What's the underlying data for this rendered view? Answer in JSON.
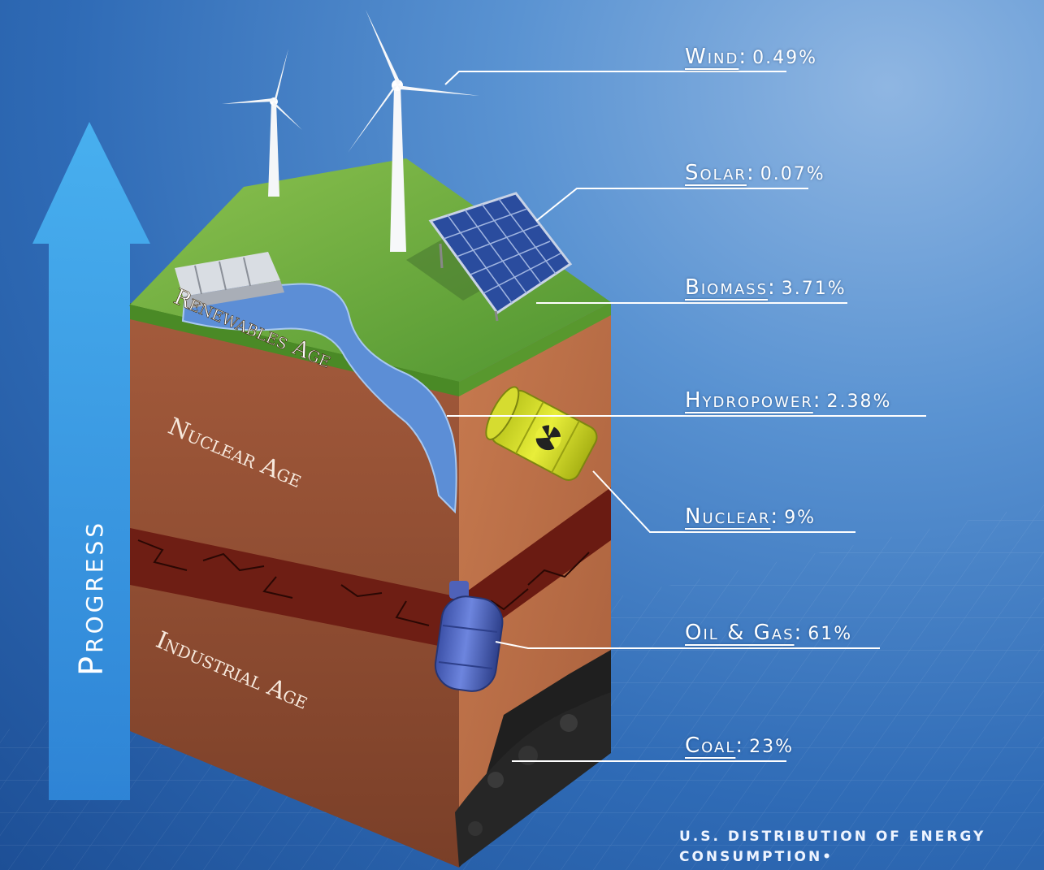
{
  "diagram": {
    "progress_label": "Progress",
    "layers": [
      {
        "label": "Renewables Age"
      },
      {
        "label": "Nuclear Age"
      },
      {
        "label": "Industrial Age"
      }
    ],
    "sources": [
      {
        "name": "Wind",
        "value": "0.49%"
      },
      {
        "name": "Solar",
        "value": "0.07%"
      },
      {
        "name": "Biomass",
        "value": "3.71%"
      },
      {
        "name": "Hydropower",
        "value": "2.38%"
      },
      {
        "name": "Nuclear",
        "value": "9%"
      },
      {
        "name": "Oil & Gas",
        "value": "61%"
      },
      {
        "name": "Coal",
        "value": "23%"
      }
    ],
    "caption": "U.S. distribution of energy consumption•"
  },
  "colors": {
    "grass": "#5fa33a",
    "soil": "#a0583a",
    "cracked_clay": "#6e1e14",
    "coal": "#1f1f1f",
    "water": "#5c8ed6",
    "arrow": "#3fa4e8"
  },
  "icons": [
    "wind-turbine-icon",
    "solar-panel-icon",
    "dam-icon",
    "radioactive-barrel-icon",
    "gas-cylinder-icon"
  ]
}
